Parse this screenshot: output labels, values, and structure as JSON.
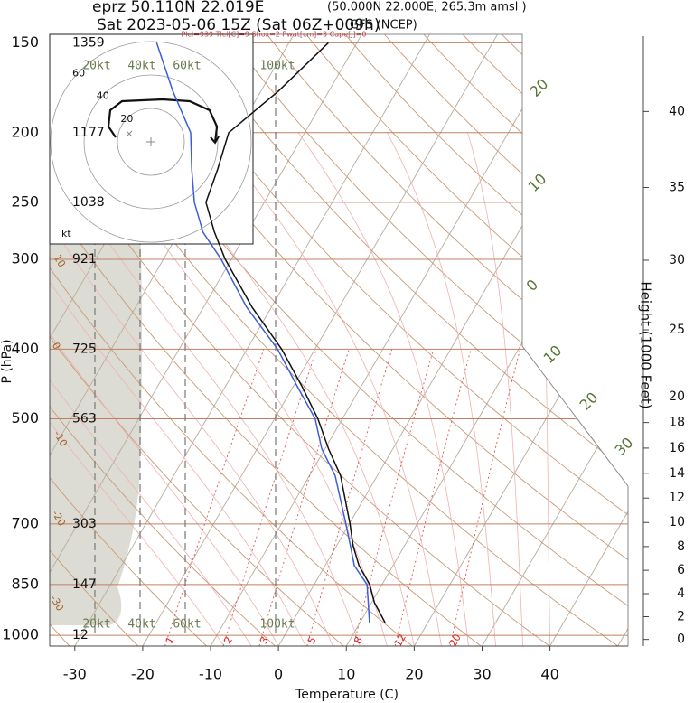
{
  "chart_data": {
    "type": "skewt",
    "title": "eprz 50.110N 22.019E",
    "location_note": "(50.000N 22.000E, 265.3m amsl )",
    "subtitle": "Sat 2023-05-06 15Z (Sat 06Z+009h)",
    "model": "GFS (NCEP)",
    "indices": "Plcl=939 Tlcl[C]=9 Shox=2 Pwat[cm]=3 Cape[J]=0",
    "xlabel": "Temperature (C)",
    "ylabel": "P (hPa)",
    "y2label": "Height (1000 Feet)",
    "xlim": [
      -33.7,
      51.5
    ],
    "xticks": [
      -30,
      -20,
      -10,
      0,
      10,
      20,
      30,
      40
    ],
    "ylim": [
      1035,
      146
    ],
    "log_y": true,
    "yticks": [
      150,
      200,
      250,
      300,
      400,
      500,
      700,
      850,
      1000
    ],
    "height_labels": [
      1359,
      1177,
      1038,
      921,
      725,
      563,
      303,
      147,
      12
    ],
    "y2ticks": [
      0,
      2,
      4,
      6,
      8,
      10,
      12,
      14,
      16,
      18,
      20,
      25,
      30,
      35,
      40
    ],
    "pressure": [
      960,
      900,
      850,
      800,
      750,
      700,
      600,
      550,
      500,
      450,
      400,
      350,
      300,
      275,
      250,
      225,
      200,
      175,
      150
    ],
    "series": [
      {
        "color": "#111111",
        "values": [
          13.7,
          10.4,
          8.2,
          5.0,
          2.4,
          0.1,
          -5.4,
          -9.5,
          -13.6,
          -18.8,
          -24.9,
          -32.8,
          -40.9,
          -44.8,
          -48.6,
          -49.7,
          -51.2,
          -47.4,
          -44.2
        ]
      },
      {
        "color": "#3a5fd8",
        "values": [
          11.4,
          9.5,
          7.8,
          4.3,
          2.0,
          -0.5,
          -6.2,
          -10.5,
          -14.0,
          -19.5,
          -25.5,
          -33.6,
          -41.5,
          -46.5,
          -50.3,
          -53.5,
          -56.8,
          -63.0,
          -69.5
        ]
      }
    ],
    "mixing_ratio_lines": [
      1,
      2,
      3,
      5,
      8,
      12,
      20
    ],
    "speed_lines": [
      {
        "value": 20,
        "label": "20kt"
      },
      {
        "value": 40,
        "label": "40kt"
      },
      {
        "value": 60,
        "label": "60kt"
      },
      {
        "value": 100,
        "label": "100kt"
      }
    ],
    "hodograph": {
      "unit": "kt",
      "rings": [
        20,
        40,
        60
      ],
      "u": [
        -21.1,
        -25.4,
        -24.3,
        -17.3,
        7.0,
        23.2,
        35.1,
        39.5,
        38.4
      ],
      "v": [
        2.7,
        9.2,
        18.9,
        24.3,
        25.4,
        24.3,
        18.9,
        9.2,
        -0.5
      ]
    },
    "isotherm_labels": [
      20,
      10,
      0,
      10,
      20,
      30
    ],
    "adiabat_labels": [
      10,
      0,
      -10,
      -20,
      -30
    ]
  }
}
